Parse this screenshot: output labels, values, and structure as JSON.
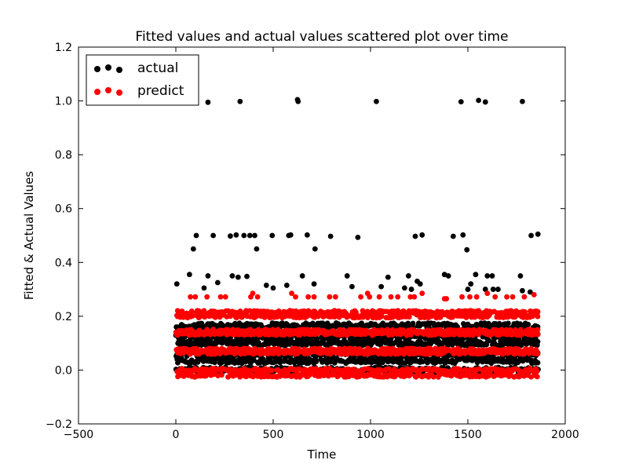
{
  "chart_data": {
    "type": "scatter",
    "title": "Fitted values and actual values scattered plot over time",
    "xlabel": "Time",
    "ylabel": "Fitted & Actual Values",
    "xlim": [
      -500,
      2000
    ],
    "ylim": [
      -0.2,
      1.2
    ],
    "x_ticks": [
      -500,
      0,
      500,
      1000,
      1500,
      2000
    ],
    "x_tick_labels": [
      "−500",
      "0",
      "500",
      "1000",
      "1500",
      "2000"
    ],
    "y_ticks": [
      -0.2,
      0.0,
      0.2,
      0.4,
      0.6,
      0.8,
      1.0,
      1.2
    ],
    "y_tick_labels": [
      "−0.2",
      "0.0",
      "0.2",
      "0.4",
      "0.6",
      "0.8",
      "1.0",
      "1.2"
    ],
    "grid": false,
    "legend_position": "top-left",
    "x_range_of_points": [
      0,
      1860
    ],
    "series": [
      {
        "name": "actual",
        "color": "#000000",
        "levels": [
          0.0,
          0.035,
          0.06,
          0.1,
          0.125,
          0.165
        ],
        "points": [
          [
            165,
            0.995
          ],
          [
            330,
            0.998
          ],
          [
            625,
            1.005
          ],
          [
            628,
            0.998
          ],
          [
            1030,
            0.998
          ],
          [
            1465,
            0.997
          ],
          [
            1555,
            1.002
          ],
          [
            1590,
            0.996
          ],
          [
            1780,
            0.998
          ],
          [
            105,
            0.5
          ],
          [
            192,
            0.5
          ],
          [
            280,
            0.498
          ],
          [
            310,
            0.502
          ],
          [
            350,
            0.5
          ],
          [
            380,
            0.5
          ],
          [
            405,
            0.5
          ],
          [
            495,
            0.5
          ],
          [
            580,
            0.5
          ],
          [
            590,
            0.502
          ],
          [
            675,
            0.502
          ],
          [
            795,
            0.497
          ],
          [
            935,
            0.493
          ],
          [
            1230,
            0.497
          ],
          [
            1265,
            0.502
          ],
          [
            1425,
            0.497
          ],
          [
            1475,
            0.502
          ],
          [
            1825,
            0.5
          ],
          [
            1860,
            0.505
          ],
          [
            90,
            0.45
          ],
          [
            415,
            0.45
          ],
          [
            715,
            0.45
          ],
          [
            1495,
            0.447
          ],
          [
            5,
            0.32
          ],
          [
            70,
            0.355
          ],
          [
            145,
            0.305
          ],
          [
            165,
            0.35
          ],
          [
            215,
            0.325
          ],
          [
            290,
            0.35
          ],
          [
            320,
            0.345
          ],
          [
            365,
            0.348
          ],
          [
            465,
            0.315
          ],
          [
            500,
            0.305
          ],
          [
            570,
            0.315
          ],
          [
            650,
            0.35
          ],
          [
            710,
            0.32
          ],
          [
            880,
            0.35
          ],
          [
            905,
            0.31
          ],
          [
            1055,
            0.31
          ],
          [
            1090,
            0.345
          ],
          [
            1175,
            0.305
          ],
          [
            1195,
            0.35
          ],
          [
            1210,
            0.3
          ],
          [
            1240,
            0.33
          ],
          [
            1255,
            0.32
          ],
          [
            1380,
            0.355
          ],
          [
            1400,
            0.35
          ],
          [
            1500,
            0.3
          ],
          [
            1515,
            0.32
          ],
          [
            1540,
            0.355
          ],
          [
            1590,
            0.3
          ],
          [
            1600,
            0.35
          ],
          [
            1625,
            0.35
          ],
          [
            1630,
            0.3
          ],
          [
            1655,
            0.3
          ],
          [
            1770,
            0.35
          ],
          [
            1780,
            0.295
          ],
          [
            1820,
            0.29
          ]
        ]
      },
      {
        "name": "predict",
        "color": "#ff0000",
        "levels": [
          -0.02,
          0.0,
          0.065,
          0.075,
          0.135,
          0.145,
          0.2,
          0.215
        ],
        "points": [
          [
            75,
            0.272
          ],
          [
            100,
            0.272
          ],
          [
            160,
            0.272
          ],
          [
            230,
            0.272
          ],
          [
            255,
            0.272
          ],
          [
            385,
            0.272
          ],
          [
            395,
            0.285
          ],
          [
            420,
            0.272
          ],
          [
            595,
            0.285
          ],
          [
            615,
            0.272
          ],
          [
            680,
            0.272
          ],
          [
            710,
            0.272
          ],
          [
            790,
            0.272
          ],
          [
            820,
            0.272
          ],
          [
            950,
            0.272
          ],
          [
            985,
            0.285
          ],
          [
            995,
            0.272
          ],
          [
            1045,
            0.272
          ],
          [
            1105,
            0.272
          ],
          [
            1140,
            0.272
          ],
          [
            1205,
            0.272
          ],
          [
            1225,
            0.272
          ],
          [
            1265,
            0.285
          ],
          [
            1380,
            0.265
          ],
          [
            1390,
            0.265
          ],
          [
            1470,
            0.272
          ],
          [
            1510,
            0.272
          ],
          [
            1545,
            0.272
          ],
          [
            1600,
            0.285
          ],
          [
            1640,
            0.272
          ],
          [
            1700,
            0.272
          ],
          [
            1730,
            0.272
          ],
          [
            1790,
            0.272
          ],
          [
            1840,
            0.28
          ]
        ]
      }
    ]
  }
}
